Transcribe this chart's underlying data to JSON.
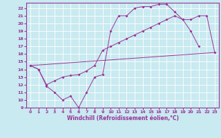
{
  "xlabel": "Windchill (Refroidissement éolien,°C)",
  "bg_color": "#c8eaf0",
  "line_color": "#993399",
  "grid_color": "#ffffff",
  "xlim": [
    -0.5,
    23.5
  ],
  "ylim": [
    9,
    22.7
  ],
  "xticks": [
    0,
    1,
    2,
    3,
    4,
    5,
    6,
    7,
    8,
    9,
    10,
    11,
    12,
    13,
    14,
    15,
    16,
    17,
    18,
    19,
    20,
    21,
    22,
    23
  ],
  "yticks": [
    9,
    10,
    11,
    12,
    13,
    14,
    15,
    16,
    17,
    18,
    19,
    20,
    21,
    22
  ],
  "line1_x": [
    0,
    1,
    2,
    3,
    4,
    5,
    6,
    7,
    8,
    9,
    10,
    11,
    12,
    13,
    14,
    15,
    16,
    17,
    18,
    19,
    20,
    21
  ],
  "line1_y": [
    14.5,
    14.0,
    11.8,
    11.0,
    10.0,
    10.5,
    9.0,
    11.0,
    13.0,
    13.3,
    19.0,
    21.0,
    21.0,
    22.0,
    22.2,
    22.2,
    22.5,
    22.5,
    21.5,
    20.5,
    19.0,
    17.0
  ],
  "line2_x": [
    0,
    1,
    2,
    3,
    4,
    5,
    6,
    7,
    8,
    9,
    10,
    11,
    12,
    13,
    14,
    15,
    16,
    17,
    18,
    19,
    20,
    21,
    22,
    23
  ],
  "line2_y": [
    14.5,
    14.0,
    12.0,
    12.5,
    13.0,
    13.2,
    13.3,
    13.8,
    14.5,
    16.5,
    17.0,
    17.5,
    18.0,
    18.5,
    19.0,
    19.5,
    20.0,
    20.5,
    21.0,
    20.5,
    20.5,
    21.0,
    21.0,
    16.2
  ],
  "line3_x": [
    0,
    23
  ],
  "line3_y": [
    14.5,
    16.2
  ],
  "xlabel_fontsize": 5.5,
  "tick_fontsize": 4.5
}
